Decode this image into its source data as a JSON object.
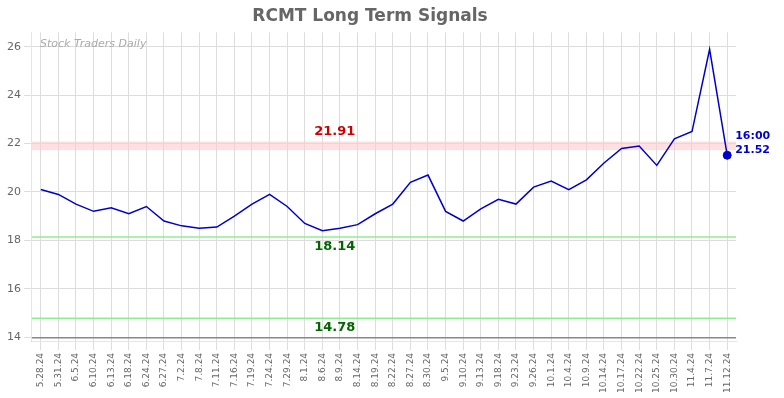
{
  "chart_data": {
    "type": "line",
    "title": "RCMT Long Term Signals",
    "categories": [
      "5.28.24",
      "5.31.24",
      "6.5.24",
      "6.10.24",
      "6.13.24",
      "6.18.24",
      "6.24.24",
      "6.27.24",
      "7.2.24",
      "7.8.24",
      "7.11.24",
      "7.16.24",
      "7.19.24",
      "7.24.24",
      "7.29.24",
      "8.1.24",
      "8.6.24",
      "8.9.24",
      "8.14.24",
      "8.19.24",
      "8.22.24",
      "8.27.24",
      "8.30.24",
      "9.5.24",
      "9.10.24",
      "9.13.24",
      "9.18.24",
      "9.23.24",
      "9.26.24",
      "10.1.24",
      "10.4.24",
      "10.9.24",
      "10.14.24",
      "10.17.24",
      "10.22.24",
      "10.25.24",
      "10.30.24",
      "11.4.24",
      "11.7.24",
      "11.12.24"
    ],
    "values": [
      20.1,
      19.9,
      19.5,
      19.2,
      19.35,
      19.1,
      19.4,
      18.8,
      18.6,
      18.5,
      18.55,
      19.0,
      19.5,
      19.9,
      19.4,
      18.7,
      18.4,
      18.5,
      18.65,
      19.1,
      19.5,
      20.4,
      20.7,
      19.2,
      18.8,
      19.3,
      19.7,
      19.5,
      20.2,
      20.45,
      20.1,
      20.5,
      21.2,
      21.8,
      21.9,
      21.1,
      22.2,
      22.5,
      25.9,
      21.52
    ],
    "color": "#0000cc",
    "ylim": [
      13.8,
      26.6
    ],
    "yticks": [
      14,
      16,
      18,
      20,
      22,
      24,
      26
    ],
    "grid": true,
    "bands": [
      {
        "from": 21.73,
        "to": 22.09,
        "color": "#ffcccc",
        "annotation": "21.91",
        "annotation_color": "#cc0000"
      }
    ],
    "hlines": [
      {
        "y": 18.14,
        "color": "#90ee90",
        "annotation": "18.14",
        "annotation_color": "#006600"
      },
      {
        "y": 14.78,
        "color": "#90ee90",
        "annotation": "14.78",
        "annotation_color": "#006600"
      },
      {
        "y": 13.97,
        "color": "#888888"
      }
    ],
    "last_point": {
      "value": 21.52,
      "annotation": "16:00\n21.52",
      "color": "#0000cc"
    },
    "watermark": "Stock Traders Daily"
  }
}
